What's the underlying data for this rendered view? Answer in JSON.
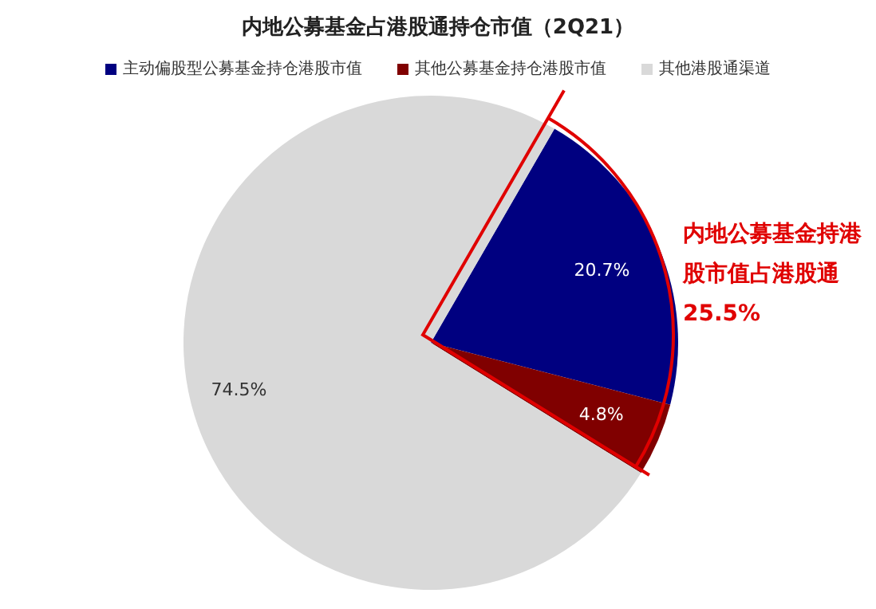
{
  "chart_data": {
    "type": "pie",
    "title": "内地公募基金占港股通持仓市值（2Q21）",
    "categories": [
      "主动偏股型公募基金持仓港股市值",
      "其他公募基金持仓港股市值",
      "其他港股通渠道"
    ],
    "values": [
      20.7,
      4.8,
      74.5
    ],
    "colors": [
      "#000080",
      "#800000",
      "#d9d9d9"
    ],
    "value_labels": [
      "20.7%",
      "4.8%",
      "74.5%"
    ],
    "legend": "top",
    "annotations": [
      "内地公募基金持港股市值占港股通25.5%"
    ]
  }
}
